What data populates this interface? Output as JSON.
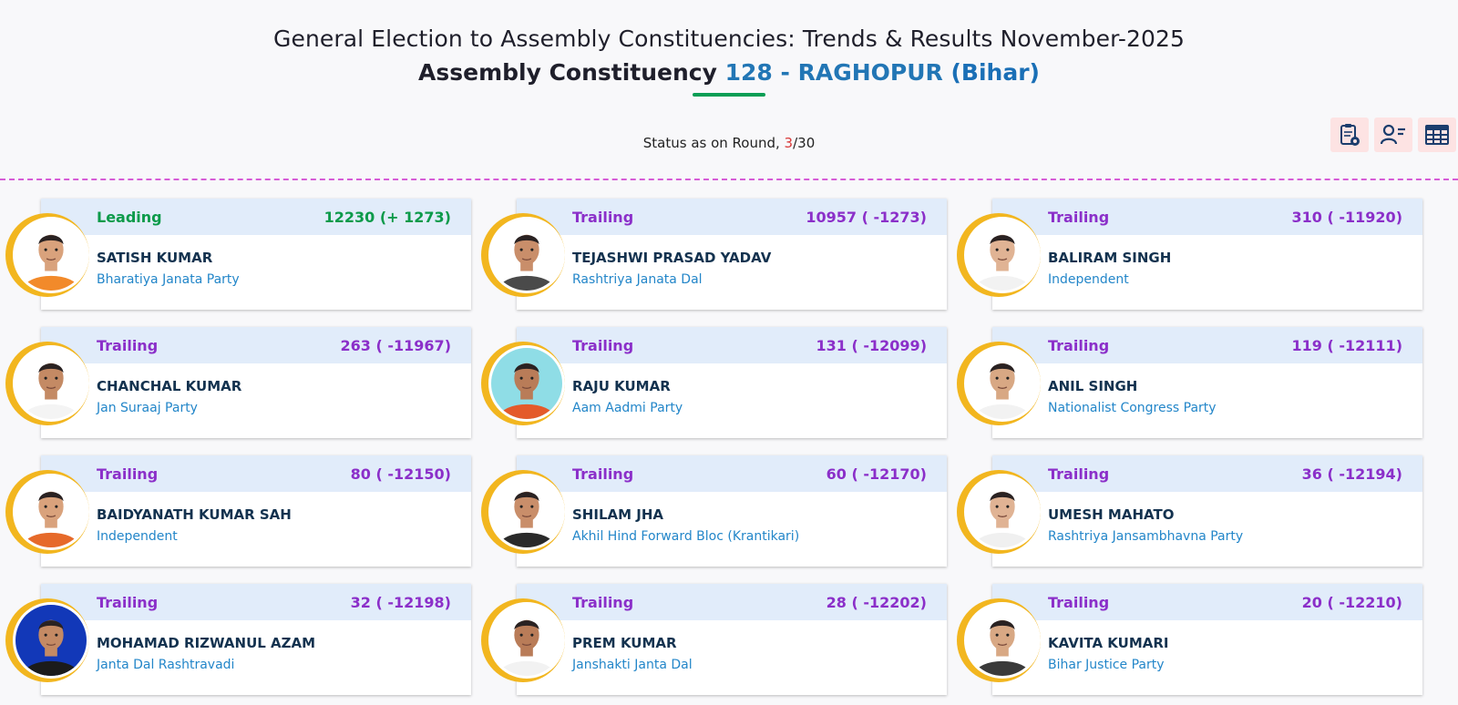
{
  "header": {
    "title_line1": "General Election to Assembly Constituencies: Trends & Results November-2025",
    "title_prefix": "Assembly Constituency",
    "ac_number_name": "128 - RAGHOPUR",
    "state": "(Bihar)"
  },
  "status": {
    "prefix": "Status as on Round, ",
    "current_round": "3",
    "total_rounds": "/30"
  },
  "toolbar": {
    "icons": [
      "clipboard-report-icon",
      "user-list-icon",
      "table-grid-icon"
    ]
  },
  "candidates": [
    {
      "status": "Leading",
      "votes": "12230 (+ 1273)",
      "name": "SATISH KUMAR",
      "party": "Bharatiya Janata Party"
    },
    {
      "status": "Trailing",
      "votes": "10957 ( -1273)",
      "name": "TEJASHWI PRASAD YADAV",
      "party": "Rashtriya Janata Dal"
    },
    {
      "status": "Trailing",
      "votes": "310 ( -11920)",
      "name": "BALIRAM SINGH",
      "party": "Independent"
    },
    {
      "status": "Trailing",
      "votes": "263 ( -11967)",
      "name": "CHANCHAL KUMAR",
      "party": "Jan Suraaj Party"
    },
    {
      "status": "Trailing",
      "votes": "131 ( -12099)",
      "name": "RAJU KUMAR",
      "party": "Aam Aadmi Party"
    },
    {
      "status": "Trailing",
      "votes": "119 ( -12111)",
      "name": "ANIL SINGH",
      "party": "Nationalist Congress Party"
    },
    {
      "status": "Trailing",
      "votes": "80 ( -12150)",
      "name": "BAIDYANATH KUMAR SAH",
      "party": "Independent"
    },
    {
      "status": "Trailing",
      "votes": "60 ( -12170)",
      "name": "SHILAM JHA",
      "party": "Akhil Hind Forward Bloc (Krantikari)"
    },
    {
      "status": "Trailing",
      "votes": "36 ( -12194)",
      "name": "UMESH MAHATO",
      "party": "Rashtriya Jansambhavna Party"
    },
    {
      "status": "Trailing",
      "votes": "32 ( -12198)",
      "name": "MOHAMAD RIZWANUL AZAM",
      "party": "Janta Dal Rashtravadi"
    },
    {
      "status": "Trailing",
      "votes": "28 ( -12202)",
      "name": "PREM KUMAR",
      "party": "Janshakti Janta Dal"
    },
    {
      "status": "Trailing",
      "votes": "20 ( -12210)",
      "name": "KAVITA KUMARI",
      "party": "Bihar Justice Party"
    }
  ],
  "colors": {
    "leading": "#0c9a4a",
    "trailing": "#8b2fc9",
    "accent_blue": "#2276b5",
    "divider": "#d65cd6",
    "photo_ring": "#f2b61f"
  }
}
